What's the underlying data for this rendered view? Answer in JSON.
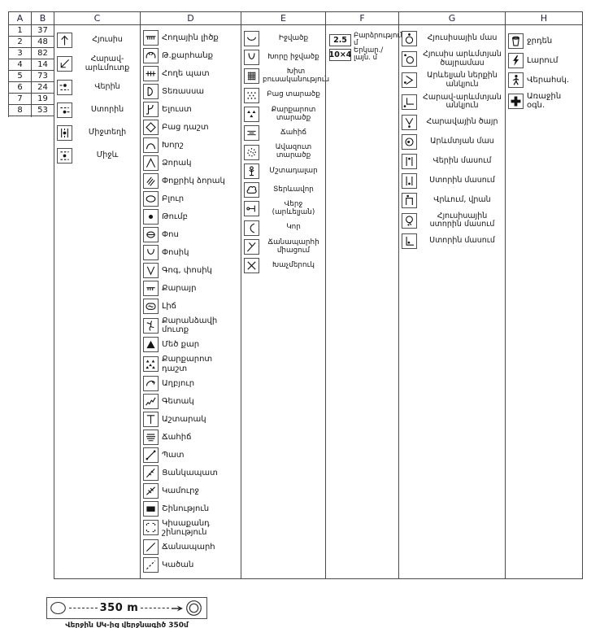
{
  "table": {
    "headers": [
      "A",
      "B",
      "C",
      "D",
      "E",
      "F",
      "G",
      "H"
    ],
    "rows": [
      {
        "index": "1",
        "value": "37"
      },
      {
        "index": "2",
        "value": "48"
      },
      {
        "index": "3",
        "value": "82"
      },
      {
        "index": "4",
        "value": "14"
      },
      {
        "index": "5",
        "value": "73"
      },
      {
        "index": "6",
        "value": "24"
      },
      {
        "index": "7",
        "value": "19"
      },
      {
        "index": "8",
        "value": "53"
      }
    ],
    "columns": {
      "c": {
        "items": [
          {
            "icon": "arrow-up",
            "label": "Հյուսիս"
          },
          {
            "icon": "arrow-downleft",
            "label": "Հարավ-արևմուտք"
          },
          {
            "icon": "upper-dot",
            "label": "Վերին"
          },
          {
            "icon": "lower-dot",
            "label": "Ստորին"
          },
          {
            "icon": "between-bars-dot",
            "label": "Միջտեղի"
          },
          {
            "icon": "middle-dot",
            "label": "Միջև"
          }
        ]
      },
      "d": {
        "items": [
          {
            "icon": "earth-bank",
            "label": "Հողային լիծք"
          },
          {
            "icon": "quarry",
            "label": "Թ.քարհանք"
          },
          {
            "icon": "earthen-wall",
            "label": "Հողե պատ"
          },
          {
            "icon": "terrace",
            "label": "Տեռասսա"
          },
          {
            "icon": "spur",
            "label": "Ելուստ"
          },
          {
            "icon": "open-diamond",
            "label": "Բաց դաշտ"
          },
          {
            "icon": "niche",
            "label": "Խորշ"
          },
          {
            "icon": "ravine",
            "label": "Ձորակ"
          },
          {
            "icon": "small-ravine",
            "label": "Փոքրիկ ձորակ"
          },
          {
            "icon": "hill",
            "label": "Բլուր"
          },
          {
            "icon": "mound",
            "label": "Թումբ"
          },
          {
            "icon": "pit",
            "label": "Փոս"
          },
          {
            "icon": "hollow-u",
            "label": "Փոսիկ"
          },
          {
            "icon": "hollow-v",
            "label": "Գոգ, փոսիկ"
          },
          {
            "icon": "cave",
            "label": "Քարայր"
          },
          {
            "icon": "lake",
            "label": "Լիճ"
          },
          {
            "icon": "cave-entrance",
            "label": "Քարանձավի մուտք"
          },
          {
            "icon": "big-rock",
            "label": "Մեծ քար"
          },
          {
            "icon": "rocky-field",
            "label": "Քարքարոտ դաշտ"
          },
          {
            "icon": "spring",
            "label": "Աղբյուր"
          },
          {
            "icon": "creek",
            "label": "Գետակ"
          },
          {
            "icon": "tower",
            "label": "Աշտարակ"
          },
          {
            "icon": "marsh",
            "label": "Ճահիճ"
          },
          {
            "icon": "wall",
            "label": "Պատ"
          },
          {
            "icon": "fence",
            "label": "Ցանկապատ"
          },
          {
            "icon": "bridge",
            "label": "Կամուրջ"
          },
          {
            "icon": "building",
            "label": "Շինություն"
          },
          {
            "icon": "ruin",
            "label": "Կիսաքանդ շինություն"
          },
          {
            "icon": "road",
            "label": "Ճանապարհ"
          },
          {
            "icon": "path",
            "label": "Կածան"
          }
        ]
      },
      "e": {
        "items": [
          {
            "icon": "depression",
            "label": "Իջվածք"
          },
          {
            "icon": "deep-depression",
            "label": "Խորը իջվածք"
          },
          {
            "icon": "dense-vegetation",
            "label": "Խիտ բուսականություն"
          },
          {
            "icon": "open-area",
            "label": "Բաց տարածք"
          },
          {
            "icon": "rocky-area",
            "label": "Քարքարոտ տարածք"
          },
          {
            "icon": "marsh-small",
            "label": "Ճահիճ"
          },
          {
            "icon": "sandy-area",
            "label": "Ավազուտ տարածք"
          },
          {
            "icon": "evergreen-tree",
            "label": "Մշտադալար"
          },
          {
            "icon": "deciduous-tree",
            "label": "Տերևավոր"
          },
          {
            "icon": "end-east",
            "label": "Վերջ (արևելյան)"
          },
          {
            "icon": "bend",
            "label": "Կոր"
          },
          {
            "icon": "junction",
            "label": "Ճանապարհի միացում"
          },
          {
            "icon": "crossroads",
            "label": "Խաչմերուկ"
          }
        ]
      },
      "f": {
        "items": [
          {
            "value": "2.5",
            "label": "Բարձրություն մ"
          },
          {
            "value": "10×4",
            "label": "Երկար./լայն. մ"
          }
        ]
      },
      "g": {
        "items": [
          {
            "icon": "north-part",
            "label": "Հյուսիսային մաս"
          },
          {
            "icon": "nw-edge",
            "label": "Հյուսիս արևմտյան ծայրամաս"
          },
          {
            "icon": "east-inner-corner",
            "label": "Արևելյան ներքին անկյուն"
          },
          {
            "icon": "sw-corner",
            "label": "Հարավ-արևմտյան անկյուն"
          },
          {
            "icon": "south-end",
            "label": "Հարավային ծայր"
          },
          {
            "icon": "west-part",
            "label": "Արևմտյան մաս"
          },
          {
            "icon": "upper-part-bars",
            "label": "Վերին մասում"
          },
          {
            "icon": "lower-part-bars",
            "label": "Ստորին մասում"
          },
          {
            "icon": "on-top",
            "label": "Վրևում, վրան"
          },
          {
            "icon": "north-lower",
            "label": "Հյուսիսային ստորին մասում"
          },
          {
            "icon": "lower-corner",
            "label": "Ստորին մասում"
          }
        ]
      },
      "h": {
        "items": [
          {
            "icon": "water-cup",
            "label": "ջրդեն"
          },
          {
            "icon": "lightning",
            "label": "Լարում"
          },
          {
            "icon": "person",
            "label": "Վերահսկ."
          },
          {
            "icon": "first-aid-cross",
            "label": "Առաջին օգն."
          }
        ]
      }
    }
  },
  "scale_bar": {
    "distance_label": "350 m",
    "caption": "Վերջին ՍԿ-ից վերջնագիծ 350մ"
  }
}
